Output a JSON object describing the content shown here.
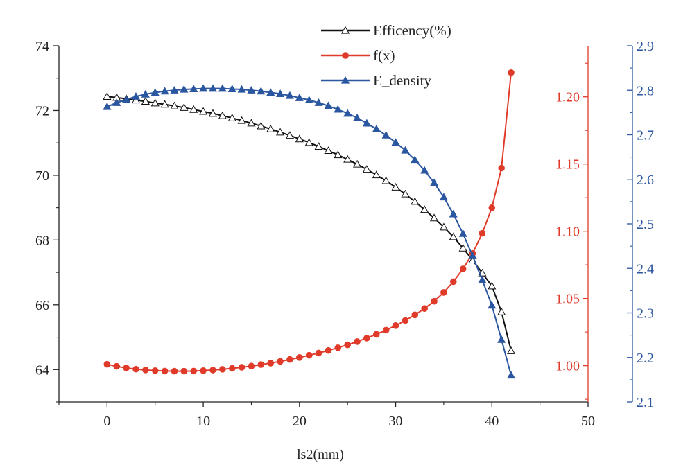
{
  "chart_data": {
    "type": "line",
    "title": "",
    "xlabel": "ls2(mm)",
    "x_ticks": [
      "0",
      "10",
      "20",
      "30",
      "40",
      "50"
    ],
    "xlim": [
      -5,
      50
    ],
    "x": [
      0,
      1,
      2,
      3,
      4,
      5,
      6,
      7,
      8,
      9,
      10,
      11,
      12,
      13,
      14,
      15,
      16,
      17,
      18,
      19,
      20,
      21,
      22,
      23,
      24,
      25,
      26,
      27,
      28,
      29,
      30,
      31,
      32,
      33,
      34,
      35,
      36,
      37,
      38,
      39,
      40,
      41,
      42
    ],
    "axes": {
      "left": {
        "color": "#222222",
        "ylim": [
          63,
          74
        ],
        "ticks": [
          "64",
          "66",
          "68",
          "70",
          "72",
          "74"
        ]
      },
      "right1": {
        "color": "#e03a2a",
        "ylim": [
          0.973,
          1.238
        ],
        "ticks": [
          "1.00",
          "1.05",
          "1.10",
          "1.15",
          "1.20"
        ]
      },
      "right2": {
        "color": "#2b56a0",
        "ylim": [
          2.1,
          2.9
        ],
        "ticks": [
          "2.1",
          "2.2",
          "2.3",
          "2.4",
          "2.5",
          "2.6",
          "2.7",
          "2.8",
          "2.9"
        ]
      }
    },
    "legend_position": "top-center",
    "series": [
      {
        "name": "Efficency(%)",
        "axis": "left",
        "color": "#111111",
        "marker": "open-triangle",
        "values": [
          72.43,
          72.4,
          72.36,
          72.32,
          72.28,
          72.23,
          72.19,
          72.14,
          72.09,
          72.03,
          71.97,
          71.91,
          71.84,
          71.77,
          71.69,
          71.61,
          71.52,
          71.43,
          71.33,
          71.23,
          71.12,
          71.01,
          70.89,
          70.76,
          70.63,
          70.49,
          70.34,
          70.18,
          70.01,
          69.83,
          69.63,
          69.42,
          69.19,
          68.94,
          68.68,
          68.4,
          68.1,
          67.75,
          67.38,
          66.98,
          66.58,
          65.78,
          64.58
        ]
      },
      {
        "name": "f(x)",
        "axis": "right1",
        "color": "#e03a2a",
        "marker": "filled-circle",
        "values": [
          1.001,
          0.9995,
          0.9983,
          0.9974,
          0.9968,
          0.9963,
          0.996,
          0.9959,
          0.9959,
          0.996,
          0.9963,
          0.9967,
          0.9973,
          0.998,
          0.9988,
          0.9997,
          1.0008,
          1.0019,
          1.0032,
          1.0046,
          1.0061,
          1.0077,
          1.0094,
          1.0113,
          1.0133,
          1.0155,
          1.0179,
          1.0205,
          1.0233,
          1.0264,
          1.0298,
          1.0336,
          1.0378,
          1.0425,
          1.0479,
          1.0545,
          1.0625,
          1.072,
          1.0835,
          1.0985,
          1.1175,
          1.147,
          1.218
        ]
      },
      {
        "name": "E_density",
        "axis": "right2",
        "color": "#2b56a0",
        "marker": "filled-triangle",
        "values": [
          2.763,
          2.772,
          2.779,
          2.786,
          2.791,
          2.795,
          2.798,
          2.8,
          2.802,
          2.803,
          2.804,
          2.804,
          2.804,
          2.803,
          2.802,
          2.8,
          2.798,
          2.795,
          2.792,
          2.788,
          2.783,
          2.778,
          2.772,
          2.765,
          2.757,
          2.748,
          2.738,
          2.726,
          2.713,
          2.699,
          2.683,
          2.665,
          2.644,
          2.62,
          2.592,
          2.56,
          2.522,
          2.478,
          2.428,
          2.374,
          2.317,
          2.24,
          2.16
        ]
      }
    ]
  }
}
